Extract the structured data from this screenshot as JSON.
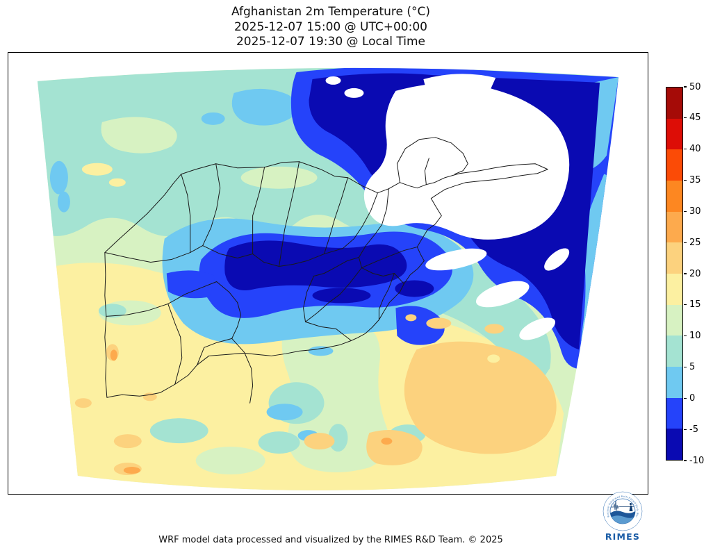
{
  "title": {
    "line1": "Afghanistan 2m Temperature (°C)",
    "line2": "2025-12-07 15:00 @ UTC+00:00",
    "line3": "2025-12-07 19:30 @ Local Time"
  },
  "footer": {
    "credit": "WRF model data processed and visualized by the RIMES R&D Team. © 2025"
  },
  "logo": {
    "text": "RIMES",
    "ring_text": "Regional Integrated Multi-Hazard Early Warning System",
    "brand_color": "#1a5ca6"
  },
  "map": {
    "boundary_color": "#1a1a1a",
    "frame_color": "#000000",
    "background": "#ffffff",
    "below_range_color": "#ffffff"
  },
  "colorbar": {
    "ticks": [
      50,
      45,
      40,
      35,
      30,
      25,
      20,
      15,
      10,
      5,
      0,
      -5,
      -10
    ],
    "levels": [
      {
        "from": -10,
        "to": -5,
        "color": "#0a0ab2"
      },
      {
        "from": -5,
        "to": 0,
        "color": "#2543fa"
      },
      {
        "from": 0,
        "to": 5,
        "color": "#6fc9f1"
      },
      {
        "from": 5,
        "to": 10,
        "color": "#a4e3d2"
      },
      {
        "from": 10,
        "to": 15,
        "color": "#d7f2c2"
      },
      {
        "from": 15,
        "to": 20,
        "color": "#fcf0a1"
      },
      {
        "from": 20,
        "to": 25,
        "color": "#fcd27e"
      },
      {
        "from": 25,
        "to": 30,
        "color": "#fdaa4d"
      },
      {
        "from": 30,
        "to": 35,
        "color": "#fd8721"
      },
      {
        "from": 35,
        "to": 40,
        "color": "#fb4b06"
      },
      {
        "from": 40,
        "to": 45,
        "color": "#dd0d06"
      },
      {
        "from": 45,
        "to": 50,
        "color": "#a50b07"
      }
    ]
  }
}
